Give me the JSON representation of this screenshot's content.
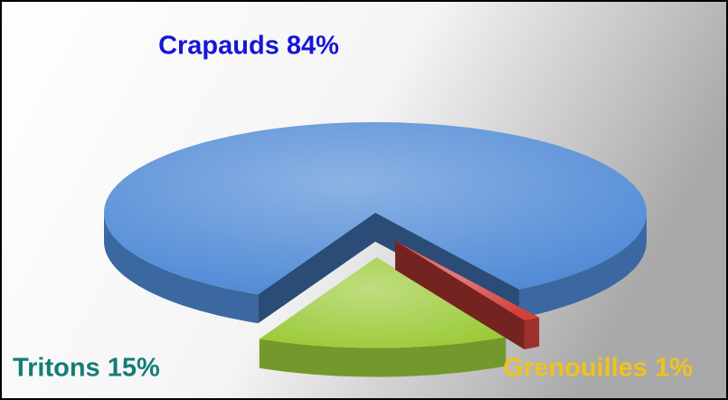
{
  "chart_data": {
    "type": "pie",
    "values": [
      84,
      15,
      1
    ],
    "value_labels": [
      "Crapauds 84%",
      "Tritons 15%",
      "Grenouilles 1%"
    ],
    "colors": [
      "#4f8ad6",
      "#9ccb3a",
      "#d2403a"
    ],
    "label_colors": [
      "#1616d8",
      "#137c78",
      "#f2c21c"
    ]
  }
}
